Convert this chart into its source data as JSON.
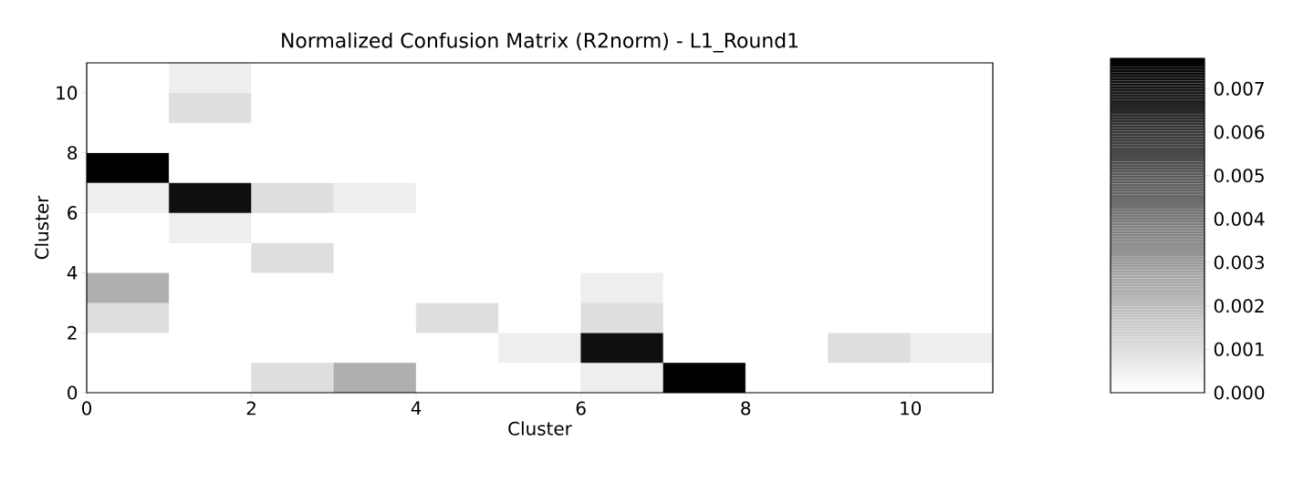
{
  "chart_data": {
    "type": "heatmap",
    "title": "Normalized Confusion Matrix (R2norm) - L1_Round1",
    "xlabel": "Cluster",
    "ylabel": "Cluster",
    "xlim": [
      0,
      11
    ],
    "ylim": [
      0,
      11
    ],
    "xticks": [
      0,
      2,
      4,
      6,
      8,
      10
    ],
    "yticks": [
      0,
      2,
      4,
      6,
      8,
      10
    ],
    "cells": [
      [
        0,
        0.0005,
        0,
        0,
        0,
        0,
        0,
        0,
        0,
        0,
        0
      ],
      [
        0,
        0.001,
        0,
        0,
        0,
        0,
        0,
        0,
        0,
        0,
        0
      ],
      [
        0,
        0,
        0,
        0,
        0,
        0,
        0,
        0,
        0,
        0,
        0
      ],
      [
        0.0077,
        0,
        0,
        0,
        0,
        0,
        0,
        0,
        0,
        0,
        0
      ],
      [
        0.0005,
        0.0072,
        0.001,
        0.0005,
        0,
        0,
        0,
        0,
        0,
        0,
        0
      ],
      [
        0,
        0.0005,
        0,
        0,
        0,
        0,
        0,
        0,
        0,
        0,
        0
      ],
      [
        0,
        0,
        0.001,
        0,
        0,
        0,
        0,
        0,
        0,
        0,
        0
      ],
      [
        0.0024,
        0,
        0,
        0,
        0,
        0,
        0.0005,
        0,
        0,
        0,
        0
      ],
      [
        0.001,
        0,
        0,
        0,
        0.001,
        0,
        0.001,
        0,
        0,
        0,
        0
      ],
      [
        0,
        0,
        0,
        0,
        0,
        0.0005,
        0.0072,
        0,
        0,
        0.001,
        0.0005
      ],
      [
        0,
        0,
        0.001,
        0.0024,
        0,
        0,
        0.0005,
        0.0077,
        0,
        0,
        0
      ]
    ],
    "clim": [
      0,
      0.0077
    ],
    "cticks": [
      {
        "value": 0,
        "label": "0.000"
      },
      {
        "value": 0.001,
        "label": "0.001"
      },
      {
        "value": 0.002,
        "label": "0.002"
      },
      {
        "value": 0.003,
        "label": "0.003"
      },
      {
        "value": 0.004,
        "label": "0.004"
      },
      {
        "value": 0.005,
        "label": "0.005"
      },
      {
        "value": 0.006,
        "label": "0.006"
      },
      {
        "value": 0.007,
        "label": "0.007"
      }
    ]
  }
}
